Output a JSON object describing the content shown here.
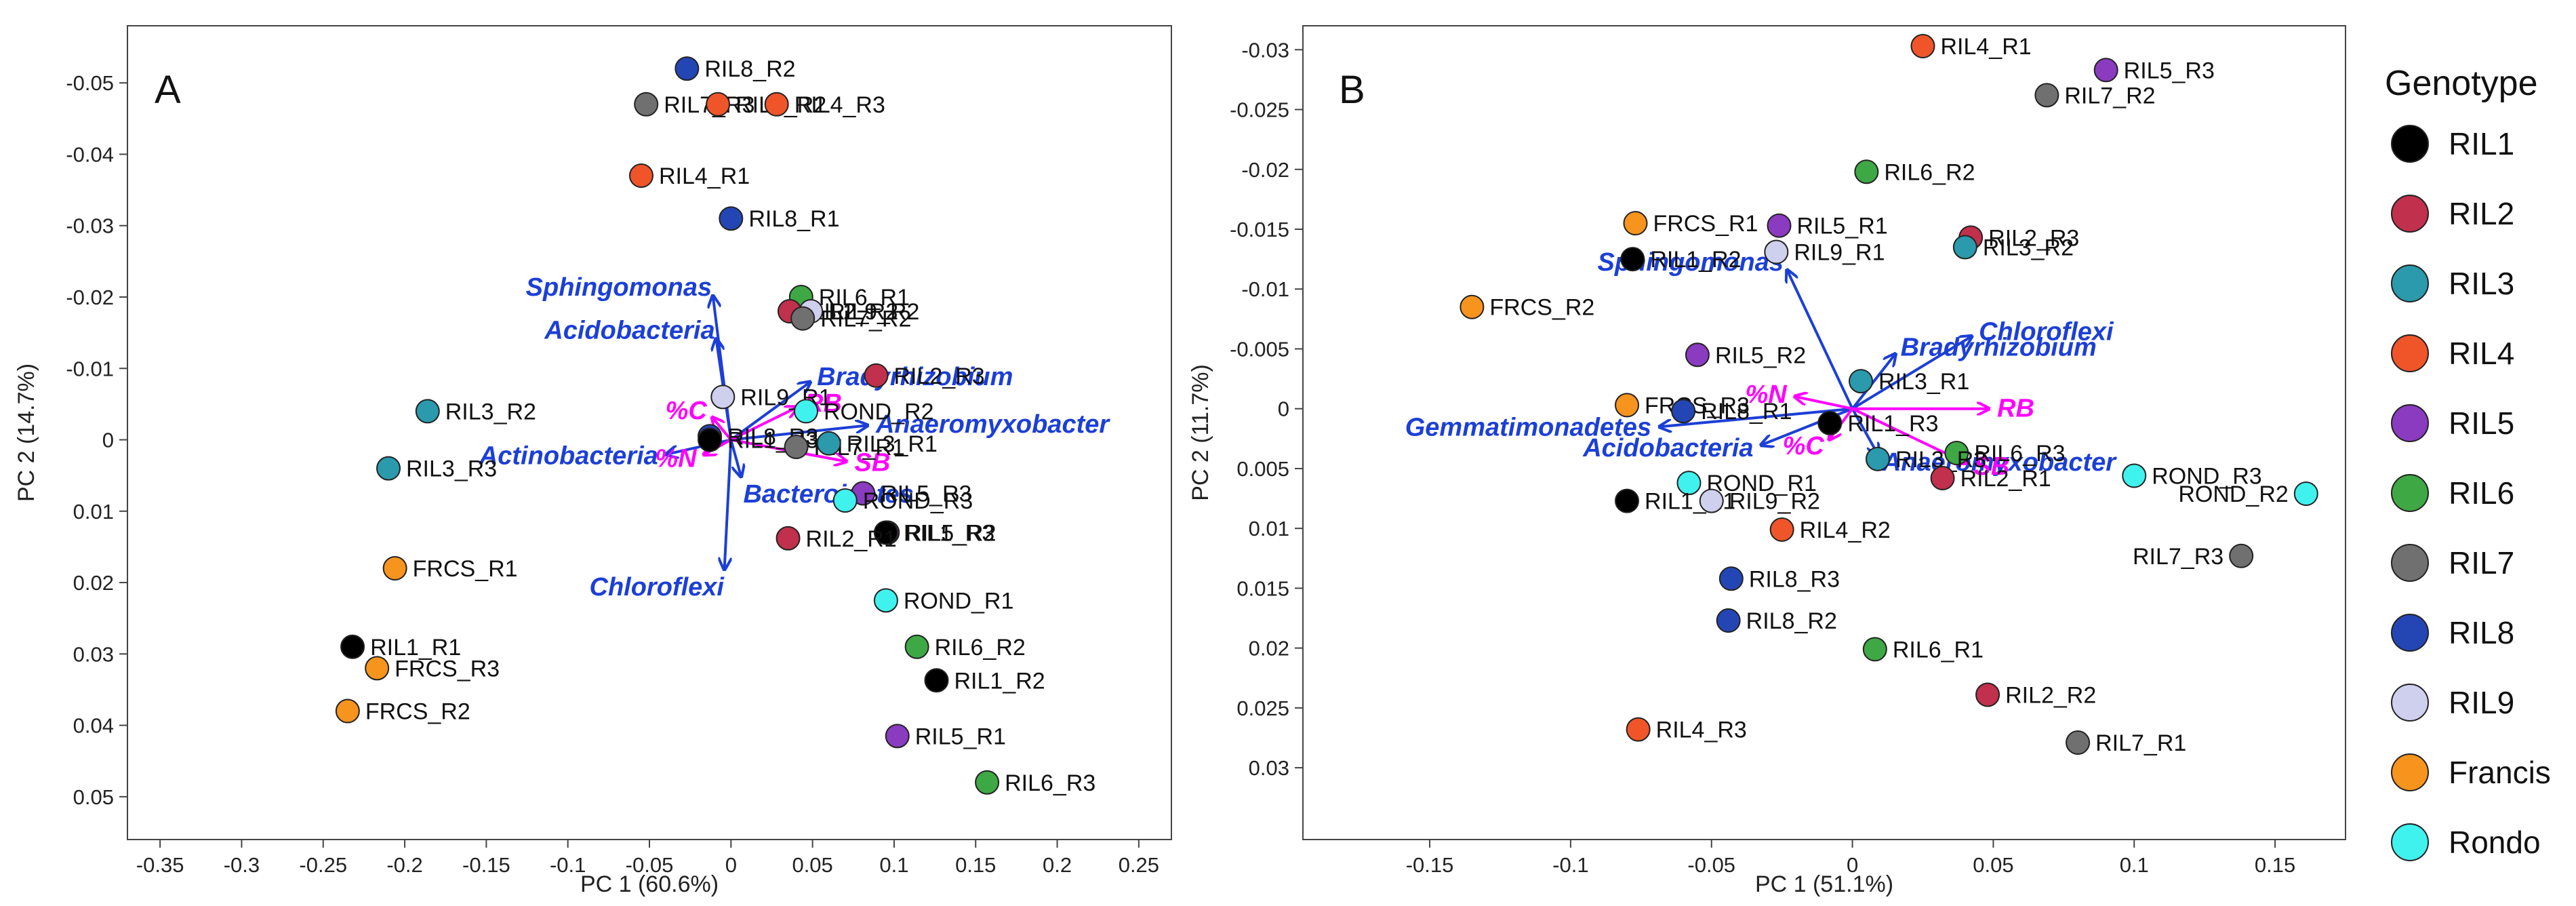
{
  "colors": {
    "RIL1": "#000000",
    "RIL2": "#c1304c",
    "RIL3": "#2a9aac",
    "RIL4": "#f0552a",
    "RIL5": "#8a3bc0",
    "RIL6": "#3ea845",
    "RIL7": "#707070",
    "RIL8": "#2446b5",
    "RIL9": "#cfcfee",
    "Francis": "#f7941d",
    "Rondo": "#3ff2ee",
    "vector_taxa": "#1c3fd6",
    "vector_soil": "#ff00ff"
  },
  "legend": {
    "title": "Genotype",
    "items": [
      {
        "label": "RIL1",
        "color_key": "RIL1"
      },
      {
        "label": "RIL2",
        "color_key": "RIL2"
      },
      {
        "label": "RIL3",
        "color_key": "RIL3"
      },
      {
        "label": "RIL4",
        "color_key": "RIL4"
      },
      {
        "label": "RIL5",
        "color_key": "RIL5"
      },
      {
        "label": "RIL6",
        "color_key": "RIL6"
      },
      {
        "label": "RIL7",
        "color_key": "RIL7"
      },
      {
        "label": "RIL8",
        "color_key": "RIL8"
      },
      {
        "label": "RIL9",
        "color_key": "RIL9"
      },
      {
        "label": "Francis",
        "color_key": "Francis"
      },
      {
        "label": "Rondo",
        "color_key": "Rondo"
      }
    ]
  },
  "chart_data": [
    {
      "type": "scatter",
      "panel": "A",
      "xlabel": "PC 1 (60.6%)",
      "ylabel": "PC 2 (14.7%)",
      "xlim": [
        -0.37,
        0.27
      ],
      "ylim": [
        -0.058,
        0.056
      ],
      "y_inverted": true,
      "xticks": [
        -0.35,
        -0.3,
        -0.25,
        -0.2,
        -0.15,
        -0.1,
        -0.05,
        0,
        0.05,
        0.1,
        0.15,
        0.2,
        0.25
      ],
      "xtick_labels": [
        "-0.35",
        "-0.3",
        "-0.25",
        "-0.2",
        "-0.15",
        "-0.1",
        "-0.05",
        "0",
        "0.05",
        "0.1",
        "0.15",
        "0.2",
        "0.25"
      ],
      "yticks": [
        -0.05,
        -0.04,
        -0.03,
        -0.02,
        -0.01,
        0,
        0.01,
        0.02,
        0.03,
        0.04,
        0.05
      ],
      "ytick_labels": [
        "-0.05",
        "-0.04",
        "-0.03",
        "-0.02",
        "-0.01",
        "0",
        "0.01",
        "0.02",
        "0.03",
        "0.04",
        "0.05"
      ],
      "points": [
        {
          "label": "RIL8_R2",
          "group": "RIL8",
          "x": -0.027,
          "y": -0.052
        },
        {
          "label": "RIL7_R3",
          "group": "RIL7",
          "x": -0.052,
          "y": -0.047
        },
        {
          "label": "RIL4_R2",
          "group": "RIL4",
          "x": -0.008,
          "y": -0.047
        },
        {
          "label": "RIL4_R3",
          "group": "RIL4",
          "x": 0.028,
          "y": -0.047
        },
        {
          "label": "RIL4_R1",
          "group": "RIL4",
          "x": -0.055,
          "y": -0.037
        },
        {
          "label": "RIL8_R1",
          "group": "RIL8",
          "x": 0.0,
          "y": -0.031
        },
        {
          "label": "RIL6_R1",
          "group": "RIL6",
          "x": 0.043,
          "y": -0.02
        },
        {
          "label": "RIL2_R2",
          "group": "RIL2",
          "x": 0.036,
          "y": -0.018
        },
        {
          "label": "RIL9_R2",
          "group": "RIL9",
          "x": 0.049,
          "y": -0.018
        },
        {
          "label": "RIL7_R2",
          "group": "RIL7",
          "x": 0.044,
          "y": -0.017
        },
        {
          "label": "RIL2_R3",
          "group": "RIL2",
          "x": 0.089,
          "y": -0.009
        },
        {
          "label": "RIL9_R1",
          "group": "RIL9",
          "x": -0.005,
          "y": -0.006
        },
        {
          "label": "ROND_R2",
          "group": "Rondo",
          "x": 0.046,
          "y": -0.004
        },
        {
          "label": "RIL3_R2",
          "group": "RIL3",
          "x": -0.186,
          "y": -0.004
        },
        {
          "label": "RIL8_R3",
          "group": "RIL8",
          "x": -0.013,
          "y": -0.0005
        },
        {
          "label": "RIL1_R3",
          "group": "RIL1",
          "x": -0.013,
          "y": 0.0
        },
        {
          "label": "RIL7_R1",
          "group": "RIL7",
          "x": 0.04,
          "y": 0.001
        },
        {
          "label": "RIL3_R1",
          "group": "RIL3",
          "x": 0.06,
          "y": 0.0005
        },
        {
          "label": "RIL3_R3",
          "group": "RIL3",
          "x": -0.21,
          "y": 0.004
        },
        {
          "label": "RIL5_R3",
          "group": "RIL5",
          "x": 0.081,
          "y": 0.0075
        },
        {
          "label": "ROND_R3",
          "group": "Rondo",
          "x": 0.07,
          "y": 0.0085
        },
        {
          "label": "RIL5_R2",
          "group": "RIL5",
          "x": 0.096,
          "y": 0.013
        },
        {
          "label": "RIL1_R3",
          "group": "RIL1",
          "x": 0.095,
          "y": 0.013
        },
        {
          "label": "RIL2_R1",
          "group": "RIL2",
          "x": 0.035,
          "y": 0.0138
        },
        {
          "label": "FRCS_R1",
          "group": "Francis",
          "x": -0.206,
          "y": 0.018
        },
        {
          "label": "ROND_R1",
          "group": "Rondo",
          "x": 0.095,
          "y": 0.0225
        },
        {
          "label": "RIL1_R1",
          "group": "RIL1",
          "x": -0.232,
          "y": 0.029
        },
        {
          "label": "RIL6_R2",
          "group": "RIL6",
          "x": 0.114,
          "y": 0.029
        },
        {
          "label": "FRCS_R3",
          "group": "Francis",
          "x": -0.217,
          "y": 0.032
        },
        {
          "label": "RIL1_R2",
          "group": "RIL1",
          "x": 0.126,
          "y": 0.0337
        },
        {
          "label": "FRCS_R2",
          "group": "Francis",
          "x": -0.235,
          "y": 0.038
        },
        {
          "label": "RIL5_R1",
          "group": "RIL5",
          "x": 0.102,
          "y": 0.0415
        },
        {
          "label": "RIL6_R3",
          "group": "RIL6",
          "x": 0.157,
          "y": 0.048
        }
      ],
      "vectors": [
        {
          "label": "Sphingomonas",
          "kind": "taxa",
          "x": -0.011,
          "y": -0.02
        },
        {
          "label": "Acidobacteria",
          "kind": "taxa",
          "x": -0.009,
          "y": -0.014
        },
        {
          "label": "Bradyrhizobium",
          "kind": "taxa",
          "x": 0.048,
          "y": -0.008
        },
        {
          "label": "Anaeromyxobacter",
          "kind": "taxa",
          "x": 0.083,
          "y": -0.002
        },
        {
          "label": "Actinobacteria",
          "kind": "taxa",
          "x": -0.039,
          "y": 0.002
        },
        {
          "label": "Bacteroidetes",
          "kind": "taxa",
          "x": 0.006,
          "y": 0.005
        },
        {
          "label": "Chloroflexi",
          "kind": "taxa",
          "x": -0.004,
          "y": 0.018
        },
        {
          "label": "RB",
          "kind": "soil",
          "x": 0.04,
          "y": -0.0045
        },
        {
          "label": "%C",
          "kind": "soil",
          "x": -0.011,
          "y": -0.003
        },
        {
          "label": "%N",
          "kind": "soil",
          "x": -0.016,
          "y": 0.002
        },
        {
          "label": "SB",
          "kind": "soil",
          "x": 0.07,
          "y": 0.003
        }
      ]
    },
    {
      "type": "scatter",
      "panel": "B",
      "xlabel": "PC 1 (51.1%)",
      "ylabel": "PC 2 (11.7%)",
      "xlim": [
        -0.195,
        0.175
      ],
      "ylim": [
        -0.032,
        0.036
      ],
      "y_inverted": true,
      "xticks": [
        -0.15,
        -0.1,
        -0.05,
        0,
        0.05,
        0.1,
        0.15
      ],
      "xtick_labels": [
        "-0.15",
        "-0.1",
        "-0.05",
        "0",
        "0.05",
        "0.1",
        "0.15"
      ],
      "yticks": [
        -0.03,
        -0.025,
        -0.02,
        -0.015,
        -0.01,
        -0.005,
        0,
        0.005,
        0.01,
        0.015,
        0.02,
        0.025,
        0.03
      ],
      "ytick_labels": [
        "-0.03",
        "-0.025",
        "-0.02",
        "-0.015",
        "-0.01",
        "-0.005",
        "0",
        "0.005",
        "0.01",
        "0.015",
        "0.02",
        "0.025",
        "0.03"
      ],
      "points": [
        {
          "label": "RIL4_R1",
          "group": "RIL4",
          "x": 0.025,
          "y": -0.0303
        },
        {
          "label": "RIL5_R3",
          "group": "RIL5",
          "x": 0.09,
          "y": -0.0283
        },
        {
          "label": "RIL7_R2",
          "group": "RIL7",
          "x": 0.069,
          "y": -0.0262
        },
        {
          "label": "RIL6_R2",
          "group": "RIL6",
          "x": 0.005,
          "y": -0.0198
        },
        {
          "label": "FRCS_R1",
          "group": "Francis",
          "x": -0.077,
          "y": -0.0155
        },
        {
          "label": "RIL5_R1",
          "group": "RIL5",
          "x": -0.026,
          "y": -0.0153
        },
        {
          "label": "RIL2_R3",
          "group": "RIL2",
          "x": 0.042,
          "y": -0.0143
        },
        {
          "label": "RIL3_R2",
          "group": "RIL3",
          "x": 0.04,
          "y": -0.0135
        },
        {
          "label": "RIL9_R1",
          "group": "RIL9",
          "x": -0.027,
          "y": -0.0131
        },
        {
          "label": "RIL1_R2",
          "group": "RIL1",
          "x": -0.078,
          "y": -0.0125
        },
        {
          "label": "FRCS_R2",
          "group": "Francis",
          "x": -0.135,
          "y": -0.0085
        },
        {
          "label": "RIL5_R2",
          "group": "RIL5",
          "x": -0.055,
          "y": -0.0045
        },
        {
          "label": "RIL3_R1",
          "group": "RIL3",
          "x": 0.003,
          "y": -0.0023
        },
        {
          "label": "FRCS_R3",
          "group": "Francis",
          "x": -0.08,
          "y": -0.0003
        },
        {
          "label": "RIL8_R1",
          "group": "RIL8",
          "x": -0.06,
          "y": 0.0002
        },
        {
          "label": "RIL1_R3",
          "group": "RIL1",
          "x": -0.008,
          "y": 0.0012
        },
        {
          "label": "RIL6_R3",
          "group": "RIL6",
          "x": 0.037,
          "y": 0.0037
        },
        {
          "label": "RIL3_R3",
          "group": "RIL3",
          "x": 0.009,
          "y": 0.0042
        },
        {
          "label": "RIL2_R1",
          "group": "RIL2",
          "x": 0.032,
          "y": 0.0058
        },
        {
          "label": "ROND_R1",
          "group": "Rondo",
          "x": -0.058,
          "y": 0.0062
        },
        {
          "label": "ROND_R3",
          "group": "Rondo",
          "x": 0.1,
          "y": 0.0056
        },
        {
          "label": "ROND_R2",
          "group": "Rondo",
          "x": 0.161,
          "y": 0.0071
        },
        {
          "label": "RIL1_R1",
          "group": "RIL1",
          "x": -0.08,
          "y": 0.0077
        },
        {
          "label": "RIL9_R2",
          "group": "RIL9",
          "x": -0.05,
          "y": 0.0077
        },
        {
          "label": "RIL4_R2",
          "group": "RIL4",
          "x": -0.025,
          "y": 0.0101
        },
        {
          "label": "RIL7_R3",
          "group": "RIL7",
          "x": 0.138,
          "y": 0.0123
        },
        {
          "label": "RIL8_R3",
          "group": "RIL8",
          "x": -0.043,
          "y": 0.0142
        },
        {
          "label": "RIL8_R2",
          "group": "RIL8",
          "x": -0.044,
          "y": 0.0177
        },
        {
          "label": "RIL6_R1",
          "group": "RIL6",
          "x": 0.008,
          "y": 0.0201
        },
        {
          "label": "RIL2_R2",
          "group": "RIL2",
          "x": 0.048,
          "y": 0.0239
        },
        {
          "label": "RIL4_R3",
          "group": "RIL4",
          "x": -0.076,
          "y": 0.0268
        },
        {
          "label": "RIL7_R1",
          "group": "RIL7",
          "x": 0.08,
          "y": 0.0279
        }
      ],
      "vectors": [
        {
          "label": "Sphingomonas",
          "kind": "taxa",
          "x": -0.023,
          "y": -0.0115
        },
        {
          "label": "Bradyrhizobium",
          "kind": "taxa",
          "x": 0.015,
          "y": -0.0045
        },
        {
          "label": "Chloroflexi",
          "kind": "taxa",
          "x": 0.042,
          "y": -0.006
        },
        {
          "label": "Gemmatimonadetes",
          "kind": "taxa",
          "x": -0.068,
          "y": 0.0015
        },
        {
          "label": "Acidobacteria",
          "kind": "taxa",
          "x": -0.032,
          "y": 0.003
        },
        {
          "label": "Anaeromyxobacter",
          "kind": "taxa",
          "x": 0.009,
          "y": 0.0038
        },
        {
          "label": "%N",
          "kind": "soil",
          "x": -0.02,
          "y": -0.001
        },
        {
          "label": "RB",
          "kind": "soil",
          "x": 0.048,
          "y": 0.0
        },
        {
          "label": "%C",
          "kind": "soil",
          "x": -0.008,
          "y": 0.0025
        },
        {
          "label": "SB",
          "kind": "soil",
          "x": 0.04,
          "y": 0.0045
        }
      ]
    }
  ]
}
